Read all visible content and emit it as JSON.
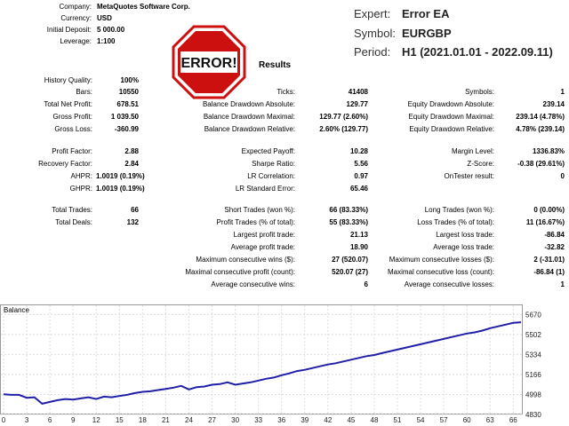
{
  "header_left": [
    {
      "label": "Company:",
      "value": "MetaQuotes Software Corp."
    },
    {
      "label": "Currency:",
      "value": "USD"
    },
    {
      "label": "Initial Deposit:",
      "value": "5 000.00"
    },
    {
      "label": "Leverage:",
      "value": "1:100"
    }
  ],
  "header_right": {
    "expert_label": "Expert:",
    "expert_value": "Error EA",
    "symbol_label": "Symbol:",
    "symbol_value": "EURGBP",
    "period_label": "Period:",
    "period_value": "H1 (2021.01.01 - 2022.09.11)"
  },
  "badge": "ERROR!",
  "results_title": "Results",
  "col1": [
    {
      "label": "History Quality:",
      "value": "100%"
    },
    {
      "label": "Bars:",
      "value": "10550"
    },
    {
      "label": "Total Net Profit:",
      "value": "678.51"
    },
    {
      "label": "Gross Profit:",
      "value": "1 039.50"
    },
    {
      "label": "Gross Loss:",
      "value": "-360.99"
    },
    {
      "label": "Profit Factor:",
      "value": "2.88"
    },
    {
      "label": "Recovery Factor:",
      "value": "2.84"
    },
    {
      "label": "AHPR:",
      "value": "1.0019 (0.19%)"
    },
    {
      "label": "GHPR:",
      "value": "1.0019 (0.19%)"
    },
    {
      "label": "Total Trades:",
      "value": "66"
    },
    {
      "label": "Total Deals:",
      "value": "132"
    }
  ],
  "col2": [
    {
      "label": "Ticks:",
      "value": "41408"
    },
    {
      "label": "Balance Drawdown Absolute:",
      "value": "129.77"
    },
    {
      "label": "Balance Drawdown Maximal:",
      "value": "129.77 (2.60%)"
    },
    {
      "label": "Balance Drawdown Relative:",
      "value": "2.60% (129.77)"
    },
    {
      "label": "Expected Payoff:",
      "value": "10.28"
    },
    {
      "label": "Sharpe Ratio:",
      "value": "5.56"
    },
    {
      "label": "LR Correlation:",
      "value": "0.97"
    },
    {
      "label": "LR Standard Error:",
      "value": "65.46"
    },
    {
      "label": "Short Trades (won %):",
      "value": "66 (83.33%)"
    },
    {
      "label": "Profit Trades (% of total):",
      "value": "55 (83.33%)"
    },
    {
      "label": "Largest profit trade:",
      "value": "21.13"
    },
    {
      "label": "Average profit trade:",
      "value": "18.90"
    },
    {
      "label": "Maximum consecutive wins ($):",
      "value": "27 (520.07)"
    },
    {
      "label": "Maximal consecutive profit (count):",
      "value": "520.07 (27)"
    },
    {
      "label": "Average consecutive wins:",
      "value": "6"
    }
  ],
  "col3": [
    {
      "label": "Symbols:",
      "value": "1"
    },
    {
      "label": "Equity Drawdown Absolute:",
      "value": "239.14"
    },
    {
      "label": "Equity Drawdown Maximal:",
      "value": "239.14 (4.78%)"
    },
    {
      "label": "Equity Drawdown Relative:",
      "value": "4.78% (239.14)"
    },
    {
      "label": "Margin Level:",
      "value": "1336.83%"
    },
    {
      "label": "Z-Score:",
      "value": "-0.38 (29.61%)"
    },
    {
      "label": "OnTester result:",
      "value": "0"
    },
    {
      "label": "Long Trades (won %):",
      "value": "0 (0.00%)"
    },
    {
      "label": "Loss Trades (% of total):",
      "value": "11 (16.67%)"
    },
    {
      "label": "Largest loss trade:",
      "value": "-86.84"
    },
    {
      "label": "Average loss trade:",
      "value": "-32.82"
    },
    {
      "label": "Maximum consecutive losses ($):",
      "value": "2 (-31.01)"
    },
    {
      "label": "Maximal consecutive loss (count):",
      "value": "-86.84 (1)"
    },
    {
      "label": "Average consecutive losses:",
      "value": "1"
    }
  ],
  "chart_data": {
    "type": "line",
    "title": "Balance",
    "xlim": [
      0,
      67
    ],
    "ylim": [
      4830,
      5710
    ],
    "x_ticks": [
      0,
      3,
      6,
      9,
      12,
      15,
      18,
      21,
      24,
      27,
      30,
      33,
      36,
      39,
      42,
      45,
      48,
      51,
      54,
      57,
      60,
      63,
      66
    ],
    "y_ticks": [
      4830,
      4998,
      5166,
      5334,
      5502,
      5670
    ],
    "line_color": "#1f1fa8",
    "series": [
      {
        "x": [
          0,
          1,
          2,
          3,
          4,
          5,
          6,
          7,
          8,
          9,
          10,
          11,
          12,
          13,
          14,
          15,
          16,
          17,
          18,
          19,
          20,
          21,
          22,
          23,
          24,
          25,
          26,
          27,
          28,
          29,
          30,
          31,
          32,
          33,
          34,
          35,
          36,
          37,
          38,
          39,
          40,
          41,
          42,
          43,
          44,
          45,
          46,
          47,
          48,
          49,
          50,
          51,
          52,
          53,
          54,
          55,
          56,
          57,
          58,
          59,
          60,
          61,
          62,
          63,
          64,
          65,
          66,
          67
        ],
        "y": [
          5000,
          4995,
          4995,
          4970,
          4975,
          4920,
          4935,
          4950,
          4960,
          4955,
          4965,
          4975,
          4960,
          4980,
          4975,
          4985,
          4995,
          5010,
          5020,
          5025,
          5035,
          5045,
          5055,
          5070,
          5040,
          5060,
          5065,
          5080,
          5085,
          5100,
          5080,
          5090,
          5100,
          5115,
          5130,
          5140,
          5160,
          5175,
          5195,
          5205,
          5220,
          5235,
          5250,
          5260,
          5275,
          5290,
          5305,
          5320,
          5330,
          5345,
          5360,
          5375,
          5390,
          5405,
          5420,
          5435,
          5450,
          5465,
          5480,
          5495,
          5510,
          5520,
          5535,
          5555,
          5570,
          5585,
          5600,
          5605
        ]
      }
    ]
  }
}
